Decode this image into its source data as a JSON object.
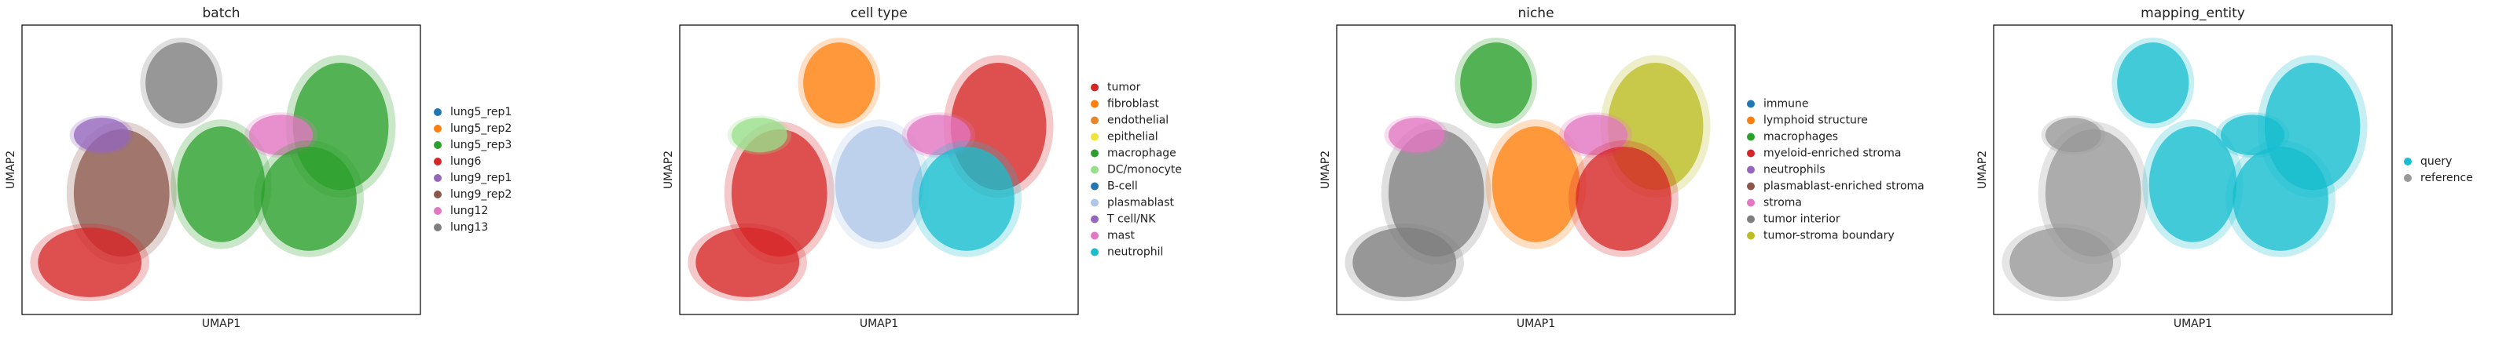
{
  "panels": [
    {
      "title": "batch",
      "xlabel": "UMAP1",
      "ylabel": "UMAP2",
      "legend": [
        {
          "label": "lung5_rep1",
          "color": "#1f77b4"
        },
        {
          "label": "lung5_rep2",
          "color": "#ff7f0e"
        },
        {
          "label": "lung5_rep3",
          "color": "#2ca02c"
        },
        {
          "label": "lung6",
          "color": "#d62728"
        },
        {
          "label": "lung9_rep1",
          "color": "#9467bd"
        },
        {
          "label": "lung9_rep2",
          "color": "#8c564b"
        },
        {
          "label": "lung12",
          "color": "#e377c2"
        },
        {
          "label": "lung13",
          "color": "#7f7f7f"
        }
      ]
    },
    {
      "title": "cell type",
      "xlabel": "UMAP1",
      "ylabel": "UMAP2",
      "legend": [
        {
          "label": "tumor",
          "color": "#d62728"
        },
        {
          "label": "fibroblast",
          "color": "#ff7f0e"
        },
        {
          "label": "endothelial",
          "color": "#e8862a"
        },
        {
          "label": "epithelial",
          "color": "#f2e33a"
        },
        {
          "label": "macrophage",
          "color": "#2ca02c"
        },
        {
          "label": "DC/monocyte",
          "color": "#98df8a"
        },
        {
          "label": "B-cell",
          "color": "#1f77b4"
        },
        {
          "label": "plasmablast",
          "color": "#aec7e8"
        },
        {
          "label": "T cell/NK",
          "color": "#9467bd"
        },
        {
          "label": "mast",
          "color": "#e377c2"
        },
        {
          "label": "neutrophil",
          "color": "#17becf"
        }
      ]
    },
    {
      "title": "niche",
      "xlabel": "UMAP1",
      "ylabel": "UMAP2",
      "legend": [
        {
          "label": "immune",
          "color": "#1f77b4"
        },
        {
          "label": "lymphoid structure",
          "color": "#ff7f0e"
        },
        {
          "label": "macrophages",
          "color": "#2ca02c"
        },
        {
          "label": "myeloid-enriched stroma",
          "color": "#d62728"
        },
        {
          "label": "neutrophils",
          "color": "#9467bd"
        },
        {
          "label": "plasmablast-enriched stroma",
          "color": "#8c564b"
        },
        {
          "label": "stroma",
          "color": "#e377c2"
        },
        {
          "label": "tumor interior",
          "color": "#7f7f7f"
        },
        {
          "label": "tumor-stroma boundary",
          "color": "#bcbd22"
        }
      ]
    },
    {
      "title": "mapping_entity",
      "xlabel": "UMAP1",
      "ylabel": "UMAP2",
      "legend": [
        {
          "label": "query",
          "color": "#17becf"
        },
        {
          "label": "reference",
          "color": "#999999"
        }
      ]
    }
  ]
}
